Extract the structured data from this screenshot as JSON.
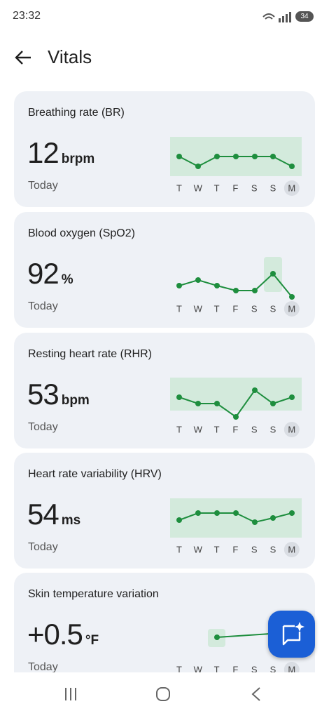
{
  "status_bar": {
    "time": "23:32",
    "battery": "34"
  },
  "header": {
    "title": "Vitals"
  },
  "days": [
    "T",
    "W",
    "T",
    "F",
    "S",
    "S",
    "M"
  ],
  "cards": [
    {
      "title": "Breathing rate (BR)",
      "value": "12",
      "unit": "brpm",
      "period": "Today"
    },
    {
      "title": "Blood oxygen (SpO2)",
      "value": "92",
      "unit": "%",
      "period": "Today"
    },
    {
      "title": "Resting heart rate (RHR)",
      "value": "53",
      "unit": "bpm",
      "period": "Today"
    },
    {
      "title": "Heart rate variability (HRV)",
      "value": "54",
      "unit": "ms",
      "period": "Today"
    },
    {
      "title": "Skin temperature variation",
      "value": "+0.5",
      "unit": "°F",
      "period": "Today"
    }
  ]
}
